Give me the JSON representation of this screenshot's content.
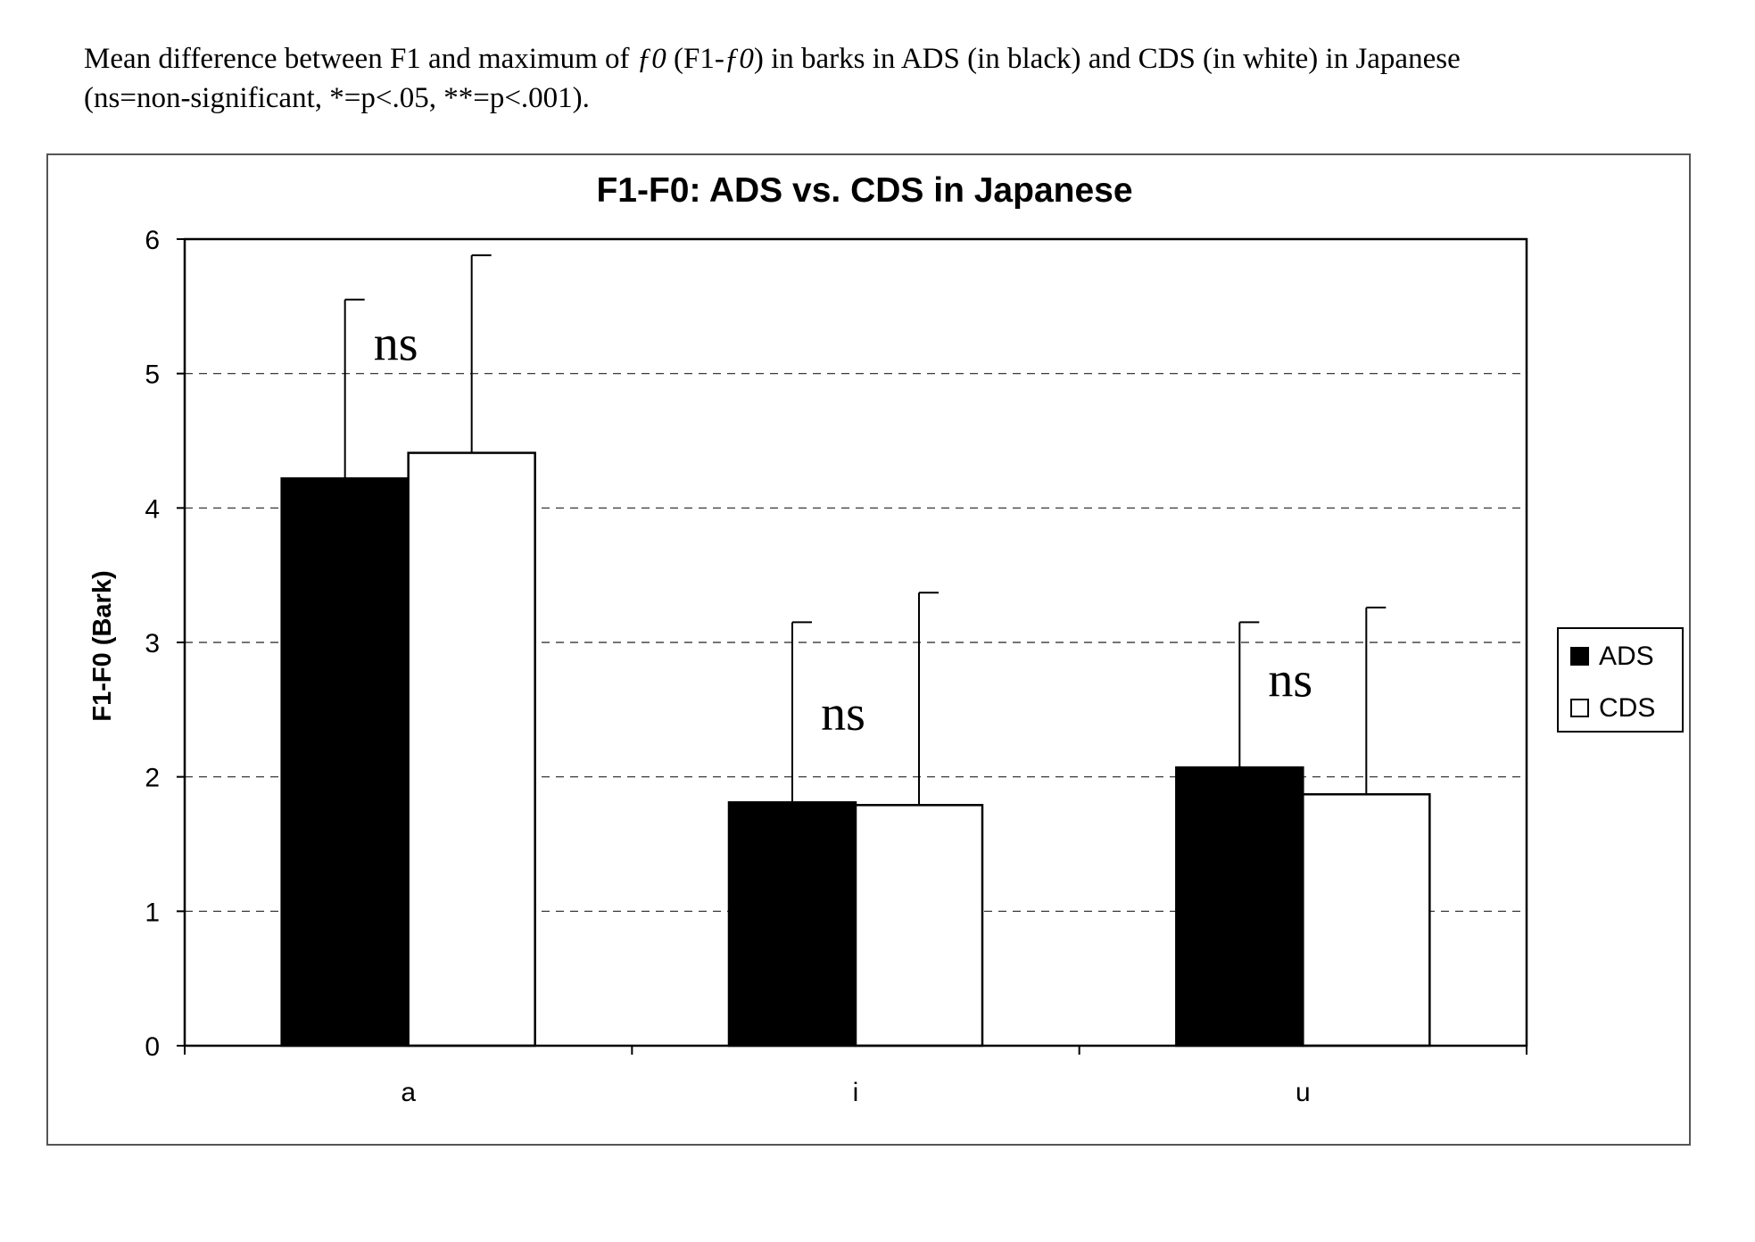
{
  "caption": {
    "line1_part1": "Mean difference between F1 and maximum of ",
    "line1_f0": "ƒ0",
    "line1_part2": " (F1-",
    "line1_f0b": "ƒ0",
    "line1_part3": ") in barks in ADS (in black) and CDS (in white) in Japanese",
    "line2": "(ns=non-significant, *=p<.05, **=p<.001)."
  },
  "chart_data": {
    "type": "bar",
    "title": "F1-F0:  ADS vs. CDS in Japanese",
    "xlabel": "",
    "ylabel": "F1-F0 (Bark)",
    "ylim": [
      0,
      6
    ],
    "yticks": [
      0,
      1,
      2,
      3,
      4,
      5,
      6
    ],
    "grid": "dashed horizontal",
    "legend_position": "right",
    "categories": [
      "a",
      "i",
      "u"
    ],
    "series": [
      {
        "name": "ADS",
        "color": "#000000",
        "values": [
          4.22,
          1.81,
          2.07
        ],
        "error_upper": [
          5.55,
          3.15,
          3.15
        ]
      },
      {
        "name": "CDS",
        "color": "#ffffff",
        "values": [
          4.41,
          1.79,
          1.87
        ],
        "error_upper": [
          5.88,
          3.37,
          3.26
        ]
      }
    ],
    "annotations": [
      {
        "category": "a",
        "text": "ns",
        "y": 5.1
      },
      {
        "category": "i",
        "text": "ns",
        "y": 2.35
      },
      {
        "category": "u",
        "text": "ns",
        "y": 2.6
      }
    ]
  }
}
